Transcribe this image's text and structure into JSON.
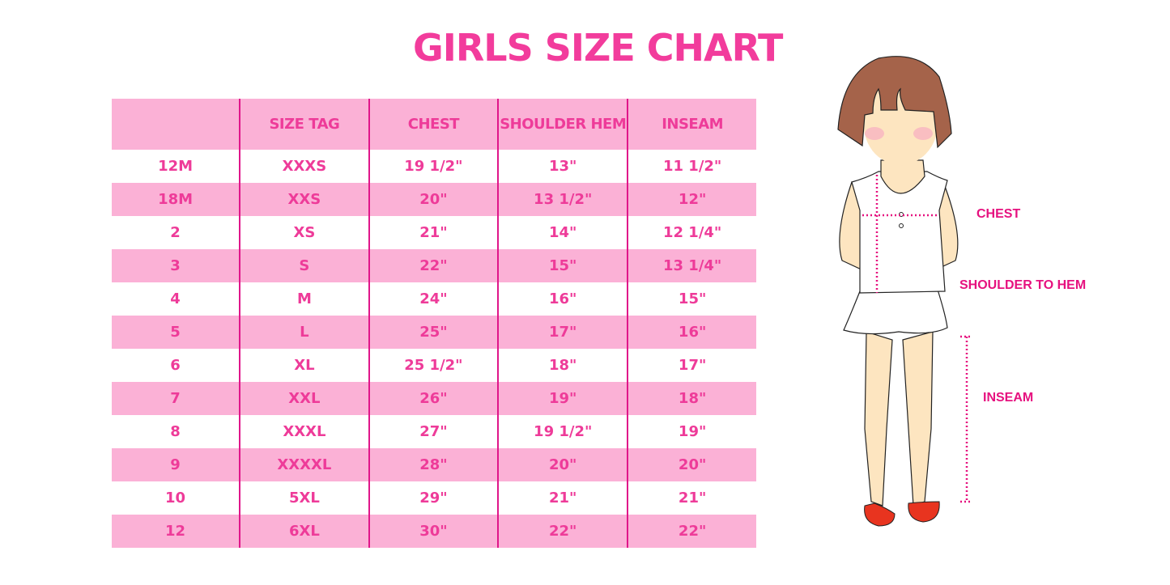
{
  "title": "GIRLS SIZE CHART",
  "table": {
    "headers": [
      "",
      "SIZE TAG",
      "CHEST",
      "SHOULDER HEM",
      "INSEAM"
    ],
    "rows": [
      [
        "12M",
        "XXXS",
        "19 1/2\"",
        "13\"",
        "11 1/2\""
      ],
      [
        "18M",
        "XXS",
        "20\"",
        "13 1/2\"",
        "12\""
      ],
      [
        "2",
        "XS",
        "21\"",
        "14\"",
        "12 1/4\""
      ],
      [
        "3",
        "S",
        "22\"",
        "15\"",
        "13 1/4\""
      ],
      [
        "4",
        "M",
        "24\"",
        "16\"",
        "15\""
      ],
      [
        "5",
        "L",
        "25\"",
        "17\"",
        "16\""
      ],
      [
        "6",
        "XL",
        "25 1/2\"",
        "18\"",
        "17\""
      ],
      [
        "7",
        "XXL",
        "26\"",
        "19\"",
        "18\""
      ],
      [
        "8",
        "XXXL",
        "27\"",
        "19 1/2\"",
        "19\""
      ],
      [
        "9",
        "XXXXL",
        "28\"",
        "20\"",
        "20\""
      ],
      [
        "10",
        "5XL",
        "29\"",
        "21\"",
        "21\""
      ],
      [
        "12",
        "6XL",
        "30\"",
        "22\"",
        "22\""
      ]
    ]
  },
  "diagram": {
    "chest_label": "CHEST",
    "shoulder_label": "SHOULDER TO HEM",
    "inseam_label": "INSEAM"
  },
  "colors": {
    "accent": "#ee3b99",
    "row_pink": "#fbb1d6",
    "divider": "#e0168a"
  }
}
